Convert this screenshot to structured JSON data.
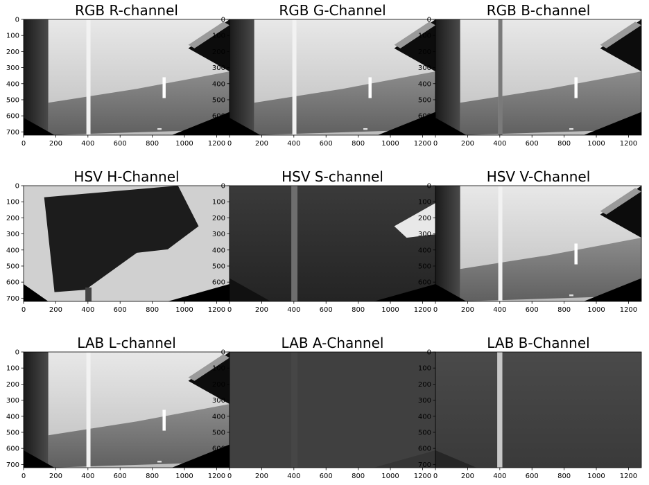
{
  "figure": {
    "panels": [
      {
        "id": "rgb-r",
        "title": "RGB R-channel",
        "variant": "road-bright"
      },
      {
        "id": "rgb-g",
        "title": "RGB G-Channel",
        "variant": "road-bright"
      },
      {
        "id": "rgb-b",
        "title": "RGB B-channel",
        "variant": "road-bright-b"
      },
      {
        "id": "hsv-h",
        "title": "HSV H-Channel",
        "variant": "hue"
      },
      {
        "id": "hsv-s",
        "title": "HSV S-channel",
        "variant": "sat"
      },
      {
        "id": "hsv-v",
        "title": "HSV V-Channel",
        "variant": "road-bright"
      },
      {
        "id": "lab-l",
        "title": "LAB L-channel",
        "variant": "road-bright"
      },
      {
        "id": "lab-a",
        "title": "LAB A-Channel",
        "variant": "flat-a"
      },
      {
        "id": "lab-b",
        "title": "LAB B-Channel",
        "variant": "flat-b"
      }
    ],
    "x_ticks": [
      "0",
      "200",
      "400",
      "600",
      "800",
      "1000",
      "1200"
    ],
    "x_tick_values": [
      0,
      200,
      400,
      600,
      800,
      1000,
      1200
    ],
    "y_ticks": [
      "0",
      "100",
      "200",
      "300",
      "400",
      "500",
      "600",
      "700"
    ],
    "y_tick_values": [
      0,
      100,
      200,
      300,
      400,
      500,
      600,
      700
    ],
    "image_width": 1280,
    "image_height": 720
  }
}
